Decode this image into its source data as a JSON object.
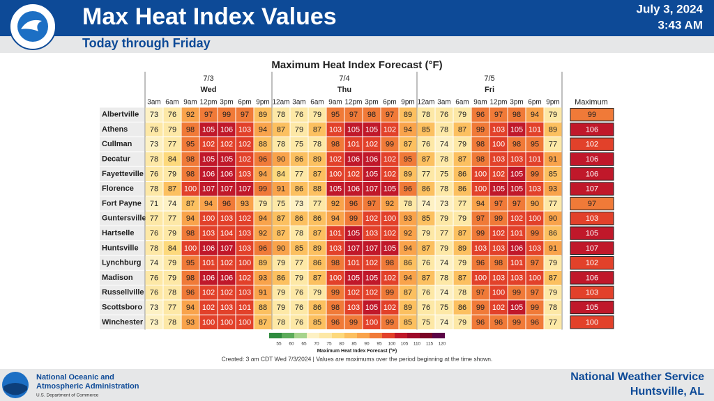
{
  "header": {
    "title": "Max Heat Index Values",
    "subtitle": "Today through Friday",
    "date": "July 3, 2024",
    "time": "3:43 AM"
  },
  "table": {
    "title": "Maximum Heat Index Forecast (°F)",
    "max_header": "Maximum",
    "days": [
      {
        "date": "7/3",
        "name": "Wed",
        "times": [
          "3am",
          "6am",
          "9am",
          "12pm",
          "3pm",
          "6pm",
          "9pm"
        ]
      },
      {
        "date": "7/4",
        "name": "Thu",
        "times": [
          "12am",
          "3am",
          "6am",
          "9am",
          "12pm",
          "3pm",
          "6pm",
          "9pm"
        ]
      },
      {
        "date": "7/5",
        "name": "Fri",
        "times": [
          "12am",
          "3am",
          "6am",
          "9am",
          "12pm",
          "3pm",
          "6pm",
          "9pm"
        ]
      }
    ],
    "rows": [
      {
        "name": "Albertville",
        "values": [
          73,
          76,
          92,
          97,
          99,
          97,
          89,
          78,
          76,
          79,
          95,
          97,
          98,
          97,
          89,
          78,
          76,
          79,
          96,
          97,
          98,
          94,
          79
        ],
        "max": 99
      },
      {
        "name": "Athens",
        "values": [
          76,
          79,
          98,
          105,
          106,
          103,
          94,
          87,
          79,
          87,
          103,
          105,
          105,
          102,
          94,
          85,
          78,
          87,
          99,
          103,
          105,
          101,
          89
        ],
        "max": 106
      },
      {
        "name": "Cullman",
        "values": [
          73,
          77,
          95,
          102,
          102,
          102,
          88,
          78,
          75,
          78,
          98,
          101,
          102,
          99,
          87,
          76,
          74,
          79,
          98,
          100,
          98,
          95,
          77
        ],
        "max": 102
      },
      {
        "name": "Decatur",
        "values": [
          78,
          84,
          98,
          105,
          105,
          102,
          96,
          90,
          86,
          89,
          102,
          106,
          106,
          102,
          95,
          87,
          78,
          87,
          98,
          103,
          103,
          101,
          91
        ],
        "max": 106
      },
      {
        "name": "Fayetteville",
        "values": [
          76,
          79,
          98,
          106,
          106,
          103,
          94,
          84,
          77,
          87,
          100,
          102,
          105,
          102,
          89,
          77,
          75,
          86,
          100,
          102,
          105,
          99,
          85
        ],
        "max": 106
      },
      {
        "name": "Florence",
        "values": [
          78,
          87,
          100,
          107,
          107,
          107,
          99,
          91,
          86,
          88,
          105,
          106,
          107,
          105,
          96,
          86,
          78,
          86,
          100,
          105,
          105,
          103,
          93
        ],
        "max": 107
      },
      {
        "name": "Fort Payne",
        "values": [
          71,
          74,
          87,
          94,
          96,
          93,
          79,
          75,
          73,
          77,
          92,
          96,
          97,
          92,
          78,
          74,
          73,
          77,
          94,
          97,
          97,
          90,
          77
        ],
        "max": 97
      },
      {
        "name": "Guntersville",
        "values": [
          77,
          77,
          94,
          100,
          103,
          102,
          94,
          87,
          86,
          86,
          94,
          99,
          102,
          100,
          93,
          85,
          79,
          79,
          97,
          99,
          102,
          100,
          90
        ],
        "max": 103
      },
      {
        "name": "Hartselle",
        "values": [
          76,
          79,
          98,
          103,
          104,
          103,
          92,
          87,
          78,
          87,
          101,
          105,
          103,
          102,
          92,
          79,
          77,
          87,
          99,
          102,
          101,
          99,
          86
        ],
        "max": 105
      },
      {
        "name": "Huntsville",
        "values": [
          78,
          84,
          100,
          106,
          107,
          103,
          96,
          90,
          85,
          89,
          103,
          107,
          107,
          105,
          94,
          87,
          79,
          89,
          103,
          103,
          106,
          103,
          91
        ],
        "max": 107
      },
      {
        "name": "Lynchburg",
        "values": [
          74,
          79,
          95,
          101,
          102,
          100,
          89,
          79,
          77,
          86,
          98,
          101,
          102,
          98,
          86,
          76,
          74,
          79,
          96,
          98,
          101,
          97,
          79
        ],
        "max": 102
      },
      {
        "name": "Madison",
        "values": [
          76,
          79,
          98,
          106,
          106,
          102,
          93,
          86,
          79,
          87,
          100,
          105,
          105,
          102,
          94,
          87,
          78,
          87,
          100,
          103,
          103,
          100,
          87
        ],
        "max": 106
      },
      {
        "name": "Russellville",
        "values": [
          76,
          78,
          96,
          102,
          102,
          103,
          91,
          79,
          76,
          79,
          99,
          102,
          102,
          99,
          87,
          76,
          74,
          78,
          97,
          100,
          99,
          97,
          79
        ],
        "max": 103
      },
      {
        "name": "Scottsboro",
        "values": [
          73,
          77,
          94,
          102,
          103,
          101,
          88,
          79,
          76,
          86,
          98,
          103,
          105,
          102,
          89,
          76,
          75,
          86,
          99,
          102,
          105,
          99,
          78
        ],
        "max": 105
      },
      {
        "name": "Winchester",
        "values": [
          73,
          78,
          93,
          100,
          100,
          100,
          87,
          78,
          76,
          85,
          96,
          99,
          100,
          99,
          85,
          75,
          74,
          79,
          96,
          96,
          99,
          96,
          77
        ],
        "max": 100
      }
    ]
  },
  "legend": {
    "title": "Maximum Heat Index Forecast (°F)",
    "ticks": [
      55,
      60,
      65,
      70,
      75,
      80,
      85,
      90,
      95,
      100,
      105,
      110,
      115,
      120
    ],
    "colors": [
      "#2e8b3e",
      "#5bab5a",
      "#a6d38c",
      "#fdf1c4",
      "#fde8a6",
      "#fdd97c",
      "#fcc060",
      "#f9a34b",
      "#f07a38",
      "#e2412a",
      "#c0182a",
      "#9e0a2a",
      "#7a0526",
      "#5a0446"
    ]
  },
  "footnote": "Created: 3 am CDT Wed 7/3/2024  |  Values are maximums over the period beginning at the time shown.",
  "footer": {
    "org_line1": "National Oceanic and",
    "org_line2": "Atmospheric Administration",
    "dept": "U.S. Department of Commerce",
    "nws": "National Weather Service",
    "office": "Huntsville, AL"
  }
}
